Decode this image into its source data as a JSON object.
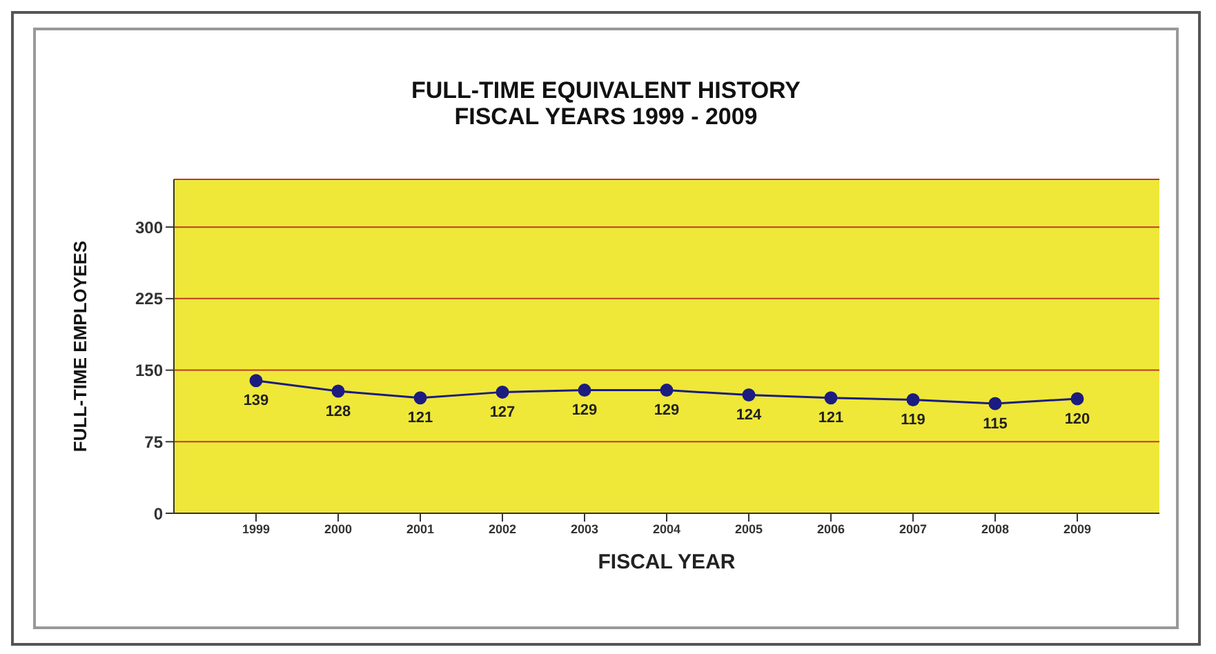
{
  "chart_data": {
    "type": "line",
    "title": "FULL-TIME EQUIVALENT HISTORY\nFISCAL YEARS 1999 - 2009",
    "xlabel": "FISCAL YEAR",
    "ylabel": "FULL-TIME EMPLOYEES",
    "categories": [
      "1999",
      "2000",
      "2001",
      "2002",
      "2003",
      "2004",
      "2005",
      "2006",
      "2007",
      "2008",
      "2009"
    ],
    "series": [
      {
        "color": "#1c1c80",
        "values": [
          139,
          128,
          121,
          127,
          129,
          129,
          124,
          121,
          119,
          115,
          120
        ]
      }
    ],
    "ylim": [
      0,
      350
    ],
    "yticks": [
      0,
      75,
      150,
      225,
      300
    ],
    "grid": "y",
    "marker": "circle",
    "data_labels": true,
    "legend": false
  }
}
